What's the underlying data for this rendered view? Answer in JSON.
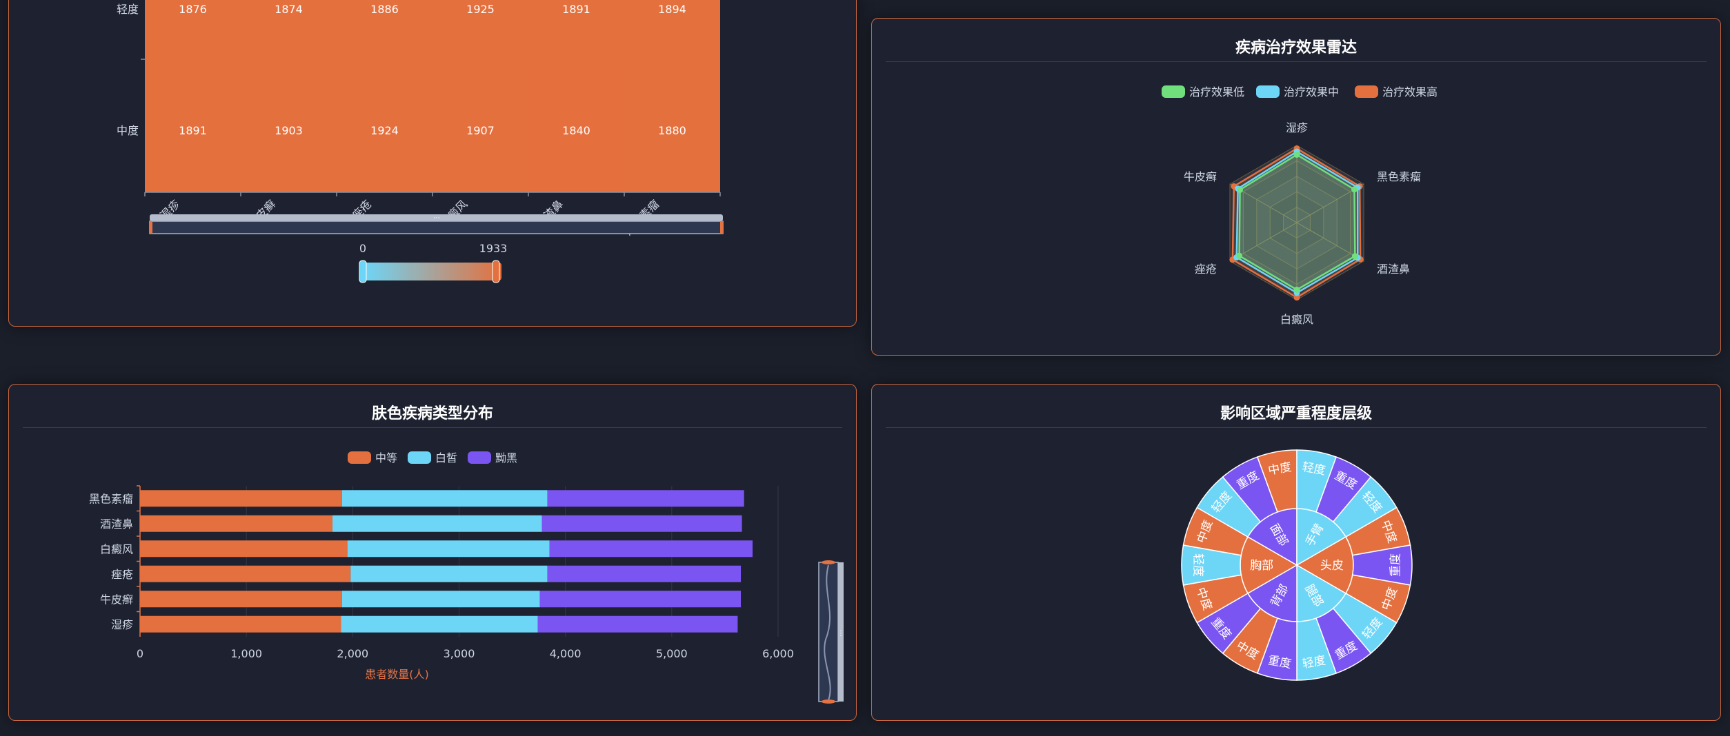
{
  "colors": {
    "orange": "#e5703f",
    "cyan": "#6dd6f7",
    "purple": "#7b55f2",
    "green": "#6fe07b",
    "panel_border": "#c9663f",
    "background": "#1b1f2a"
  },
  "heatmap": {
    "chart_data": {
      "type": "heatmap",
      "x_categories": [
        "湿疹",
        "牛皮癣",
        "痤疮",
        "白癜风",
        "酒渣鼻",
        "黑色素瘤"
      ],
      "y_categories": [
        "中度",
        "轻度"
      ],
      "values": {
        "轻度": [
          1876,
          1874,
          1886,
          1925,
          1891,
          1894
        ],
        "中度": [
          1891,
          1903,
          1924,
          1907,
          1840,
          1880
        ]
      },
      "visual_map": {
        "min": 0,
        "max": 1933
      }
    },
    "visual_min_label": "0",
    "visual_max_label": "1933"
  },
  "radar": {
    "title": "疾病治疗效果雷达",
    "legend": [
      "治疗效果低",
      "治疗效果中",
      "治疗效果高"
    ],
    "chart_data": {
      "type": "radar",
      "indicators": [
        "湿疹",
        "黑色素瘤",
        "酒渣鼻",
        "白癜风",
        "痤疮",
        "牛皮癣"
      ],
      "series": [
        {
          "name": "治疗效果低",
          "values": [
            0.88,
            0.86,
            0.87,
            0.87,
            0.86,
            0.85
          ]
        },
        {
          "name": "治疗效果中",
          "values": [
            0.92,
            0.91,
            0.91,
            0.91,
            0.9,
            0.88
          ]
        },
        {
          "name": "治疗效果高",
          "values": [
            0.96,
            0.94,
            0.95,
            0.97,
            0.96,
            0.94
          ]
        }
      ]
    }
  },
  "bar": {
    "title": "肤色疾病类型分布",
    "legend": [
      "中等",
      "白皙",
      "黝黑"
    ],
    "xlabel": "患者数量(人)",
    "x_tick_labels": [
      "0",
      "1,000",
      "2,000",
      "3,000",
      "4,000",
      "5,000",
      "6,000"
    ],
    "chart_data": {
      "type": "bar",
      "orientation": "horizontal",
      "stacked": true,
      "categories": [
        "湿疹",
        "牛皮癣",
        "痤疮",
        "白癜风",
        "酒渣鼻",
        "黑色素瘤"
      ],
      "series": [
        {
          "name": "中等",
          "values": [
            1890,
            1900,
            1980,
            1950,
            1810,
            1900
          ]
        },
        {
          "name": "白皙",
          "values": [
            1850,
            1860,
            1850,
            1900,
            1970,
            1930
          ]
        },
        {
          "name": "黝黑",
          "values": [
            1880,
            1890,
            1820,
            1910,
            1880,
            1850
          ]
        }
      ],
      "xlim": [
        0,
        6000
      ]
    }
  },
  "sunburst": {
    "title": "影响区域严重程度层级",
    "chart_data": {
      "type": "sunburst",
      "inner": [
        {
          "name": "头皮",
          "color": "orange"
        },
        {
          "name": "腿部",
          "color": "cyan"
        },
        {
          "name": "背部",
          "color": "purple"
        },
        {
          "name": "胸部",
          "color": "orange"
        },
        {
          "name": "面部",
          "color": "purple"
        },
        {
          "name": "手臂",
          "color": "cyan"
        }
      ],
      "outer": [
        {
          "name": "中度",
          "color": "orange"
        },
        {
          "name": "重度",
          "color": "purple"
        },
        {
          "name": "中度",
          "color": "orange"
        },
        {
          "name": "轻度",
          "color": "cyan"
        },
        {
          "name": "重度",
          "color": "purple"
        },
        {
          "name": "轻度",
          "color": "cyan"
        },
        {
          "name": "重度",
          "color": "purple"
        },
        {
          "name": "中度",
          "color": "orange"
        },
        {
          "name": "重度",
          "color": "purple"
        },
        {
          "name": "中度",
          "color": "orange"
        },
        {
          "name": "轻度",
          "color": "cyan"
        },
        {
          "name": "中度",
          "color": "orange"
        },
        {
          "name": "轻度",
          "color": "cyan"
        },
        {
          "name": "重度",
          "color": "purple"
        },
        {
          "name": "中度",
          "color": "orange"
        },
        {
          "name": "轻度",
          "color": "cyan"
        },
        {
          "name": "重度",
          "color": "purple"
        },
        {
          "name": "轻度",
          "color": "cyan"
        }
      ]
    }
  }
}
